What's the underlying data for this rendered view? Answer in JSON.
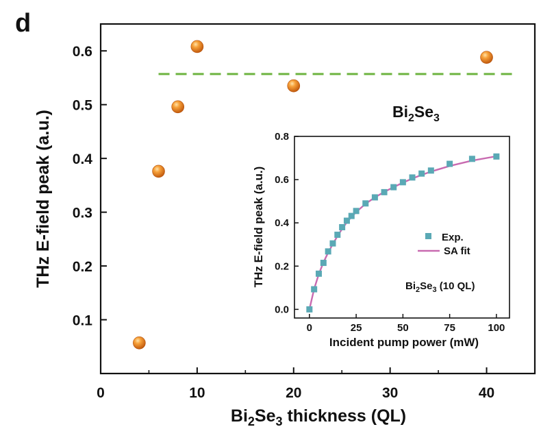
{
  "panel_label": "d",
  "chart_data": [
    {
      "type": "scatter",
      "title": "",
      "xlabel": {
        "main": "Bi",
        "sub": "2",
        "main2": "Se",
        "sub2": "3",
        "rest": " thickness (QL)"
      },
      "ylabel": "THz E-field peak (a.u.)",
      "xlim": [
        0,
        45
      ],
      "ylim": [
        0,
        0.65
      ],
      "x_ticks": [
        "0",
        "10",
        "20",
        "30",
        "40"
      ],
      "y_ticks": [
        "0.1",
        "0.2",
        "0.3",
        "0.4",
        "0.5",
        "0.6"
      ],
      "annotation": {
        "main": "Bi",
        "sub": "2",
        "main2": "Se",
        "sub2": "3"
      },
      "reference_line": {
        "y": 0.557,
        "x_from": 6,
        "x_to": 43,
        "style": "dashed",
        "color": "#6cb33f"
      },
      "series": [
        {
          "points": [
            {
              "x": 4,
              "y": 0.057
            },
            {
              "x": 6,
              "y": 0.376
            },
            {
              "x": 8,
              "y": 0.496
            },
            {
              "x": 10,
              "y": 0.608
            },
            {
              "x": 20,
              "y": 0.535
            },
            {
              "x": 40,
              "y": 0.588
            }
          ],
          "color": "#f08a24",
          "marker": "sphere"
        }
      ],
      "grid": false
    },
    {
      "type": "scatter",
      "title": "",
      "xlabel": "Incident pump power (mW)",
      "ylabel": "THz E-field peak (a.u.)",
      "xlim": [
        -8,
        107
      ],
      "ylim": [
        -0.04,
        0.8
      ],
      "x_ticks": [
        "0",
        "25",
        "50",
        "75",
        "100"
      ],
      "y_ticks": [
        "0.0",
        "0.2",
        "0.4",
        "0.6",
        "0.8"
      ],
      "legend_position": "center-right",
      "annotation": {
        "main": "Bi",
        "sub": "2",
        "main2": "Se",
        "sub2": "3",
        "rest": " (10 QL)"
      },
      "series": [
        {
          "name": "Exp.",
          "marker": "square",
          "color": "#5aa9b5",
          "points": [
            {
              "x": 0,
              "y": 0.0
            },
            {
              "x": 2.5,
              "y": 0.093
            },
            {
              "x": 5,
              "y": 0.165
            },
            {
              "x": 7.5,
              "y": 0.215
            },
            {
              "x": 10,
              "y": 0.268
            },
            {
              "x": 12.5,
              "y": 0.305
            },
            {
              "x": 15,
              "y": 0.345
            },
            {
              "x": 17.5,
              "y": 0.38
            },
            {
              "x": 20,
              "y": 0.41
            },
            {
              "x": 22.5,
              "y": 0.432
            },
            {
              "x": 25,
              "y": 0.455
            },
            {
              "x": 30,
              "y": 0.49
            },
            {
              "x": 35,
              "y": 0.518
            },
            {
              "x": 40,
              "y": 0.542
            },
            {
              "x": 45,
              "y": 0.565
            },
            {
              "x": 50,
              "y": 0.588
            },
            {
              "x": 55,
              "y": 0.61
            },
            {
              "x": 60,
              "y": 0.628
            },
            {
              "x": 65,
              "y": 0.642
            },
            {
              "x": 75,
              "y": 0.673
            },
            {
              "x": 87,
              "y": 0.696
            },
            {
              "x": 100,
              "y": 0.707
            }
          ]
        },
        {
          "name": "SA fit",
          "type": "line",
          "color": "#c86ab0",
          "x": [
            0,
            2.5,
            5,
            7.5,
            10,
            12.5,
            15,
            17.5,
            20,
            22.5,
            25,
            30,
            35,
            40,
            45,
            50,
            55,
            60,
            65,
            75,
            87,
            100
          ],
          "values": [
            0.0,
            0.094,
            0.163,
            0.217,
            0.262,
            0.302,
            0.339,
            0.372,
            0.403,
            0.428,
            0.45,
            0.488,
            0.518,
            0.543,
            0.565,
            0.586,
            0.605,
            0.622,
            0.637,
            0.663,
            0.688,
            0.708
          ]
        }
      ]
    }
  ]
}
